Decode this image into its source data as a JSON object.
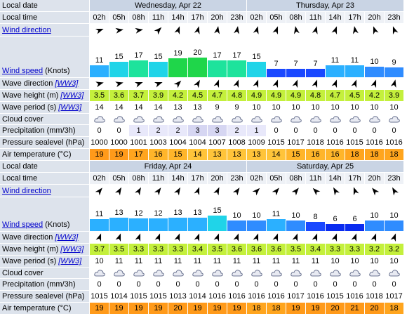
{
  "row_labels": {
    "local_date": "Local date",
    "local_time": "Local time",
    "wind_direction": "Wind direction",
    "wind_speed": "Wind speed",
    "wind_speed_unit": "(Knots)",
    "wave_direction": "Wave direction",
    "ww3": "[WW3]",
    "wave_height": "Wave height (m)",
    "wave_period": "Wave period (s)",
    "cloud_cover": "Cloud cover",
    "precipitation": "Precipitation (mm/3h)",
    "pressure": "Pressure sealevel (hPa)",
    "air_temperature": "Air temperature (°C)"
  },
  "blocks": [
    {
      "dates": [
        "Wednesday, Apr 22",
        "Thursday, Apr 23"
      ],
      "times": [
        "02h",
        "05h",
        "08h",
        "11h",
        "14h",
        "17h",
        "20h",
        "23h",
        "02h",
        "05h",
        "08h",
        "11h",
        "14h",
        "17h",
        "20h",
        "23h"
      ],
      "wind_direction_deg": [
        70,
        80,
        80,
        45,
        20,
        15,
        10,
        10,
        15,
        20,
        350,
        15,
        20,
        350,
        340,
        340
      ],
      "wind_speed": [
        11,
        15,
        17,
        15,
        19,
        20,
        17,
        17,
        15,
        7,
        7,
        7,
        11,
        11,
        10,
        9
      ],
      "wave_direction_deg": [
        75,
        75,
        70,
        70,
        45,
        30,
        20,
        20,
        20,
        20,
        20,
        20,
        20,
        20,
        20,
        15
      ],
      "wave_height": [
        3.5,
        3.6,
        3.7,
        3.9,
        4.2,
        4.5,
        4.7,
        4.8,
        4.9,
        4.9,
        4.9,
        4.8,
        4.7,
        4.5,
        4.2,
        3.9
      ],
      "wave_period": [
        14,
        14,
        14,
        14,
        13,
        13,
        9,
        9,
        10,
        10,
        10,
        10,
        10,
        10,
        10,
        10
      ],
      "precipitation": [
        0,
        0,
        1,
        2,
        2,
        3,
        3,
        2,
        1,
        0,
        0,
        0,
        0,
        0,
        0,
        0
      ],
      "pressure": [
        1000,
        1000,
        1001,
        1003,
        1004,
        1004,
        1007,
        1008,
        1009,
        1015,
        1017,
        1018,
        1016,
        1015,
        1016,
        1016
      ],
      "air_temperature": [
        19,
        19,
        17,
        16,
        15,
        14,
        13,
        13,
        13,
        14,
        15,
        16,
        16,
        18,
        18,
        18
      ]
    },
    {
      "dates": [
        "Friday, Apr 24",
        "Saturday, Apr 25"
      ],
      "times": [
        "02h",
        "05h",
        "08h",
        "11h",
        "14h",
        "17h",
        "20h",
        "23h",
        "02h",
        "05h",
        "08h",
        "11h",
        "14h",
        "17h",
        "20h",
        "23h"
      ],
      "wind_direction_deg": [
        40,
        30,
        30,
        35,
        30,
        20,
        25,
        35,
        45,
        40,
        40,
        315,
        330,
        340,
        320,
        330
      ],
      "wind_speed": [
        11,
        13,
        12,
        12,
        13,
        13,
        15,
        10,
        10,
        11,
        10,
        8,
        6,
        6,
        10,
        10
      ],
      "wave_direction_deg": [
        20,
        20,
        20,
        20,
        20,
        20,
        20,
        20,
        20,
        20,
        20,
        20,
        20,
        20,
        20,
        20
      ],
      "wave_height": [
        3.7,
        3.5,
        3.3,
        3.3,
        3.3,
        3.4,
        3.5,
        3.6,
        3.6,
        3.6,
        3.5,
        3.4,
        3.3,
        3.3,
        3.2,
        3.2
      ],
      "wave_period": [
        10,
        11,
        11,
        11,
        11,
        11,
        11,
        11,
        11,
        11,
        11,
        11,
        10,
        10,
        10,
        10
      ],
      "precipitation": [
        0,
        0,
        0,
        0,
        0,
        0,
        0,
        0,
        0,
        0,
        0,
        0,
        0,
        0,
        0,
        0
      ],
      "pressure": [
        1015,
        1014,
        1015,
        1015,
        1013,
        1014,
        1016,
        1016,
        1016,
        1016,
        1017,
        1016,
        1015,
        1016,
        1018,
        1017
      ],
      "air_temperature": [
        19,
        19,
        19,
        19,
        20,
        19,
        19,
        19,
        18,
        18,
        19,
        19,
        20,
        21,
        20,
        18
      ]
    }
  ]
}
